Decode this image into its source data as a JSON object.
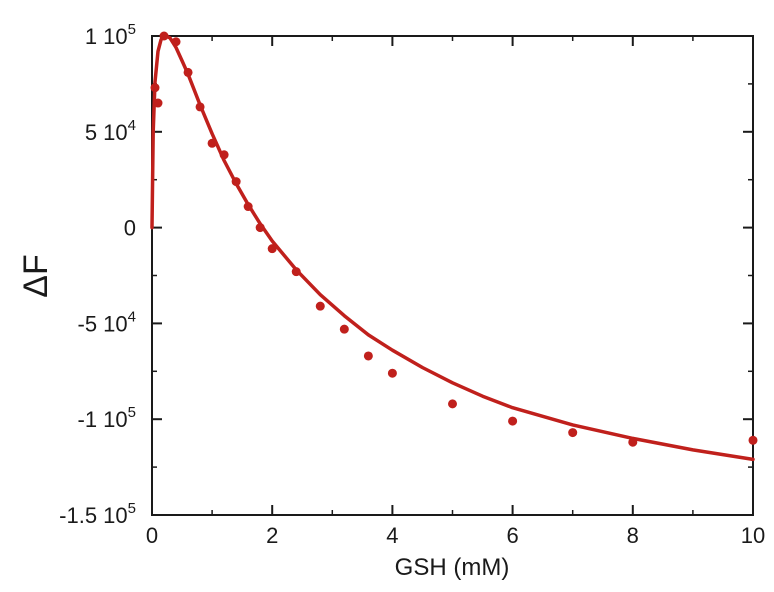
{
  "chart_data": {
    "type": "scatter",
    "title": "",
    "xlabel": "GSH (mM)",
    "ylabel": "ΔF",
    "xlim": [
      0,
      10
    ],
    "ylim": [
      -150000,
      100000
    ],
    "x_ticks": [
      {
        "value": 0,
        "label": "0"
      },
      {
        "value": 2,
        "label": "2"
      },
      {
        "value": 4,
        "label": "4"
      },
      {
        "value": 6,
        "label": "6"
      },
      {
        "value": 8,
        "label": "8"
      },
      {
        "value": 10,
        "label": "10"
      }
    ],
    "y_ticks": [
      {
        "value": 100000,
        "mantissa": "1 10",
        "exp": "5"
      },
      {
        "value": 50000,
        "mantissa": "5 10",
        "exp": "4"
      },
      {
        "value": 0,
        "mantissa": "0",
        "exp": ""
      },
      {
        "value": -50000,
        "mantissa": "-5 10",
        "exp": "4"
      },
      {
        "value": -100000,
        "mantissa": "-1 10",
        "exp": "5"
      },
      {
        "value": -150000,
        "mantissa": "-1.5 10",
        "exp": "5"
      }
    ],
    "grid": false,
    "color": "#c0201c",
    "series": [
      {
        "type": "scatter",
        "points": [
          {
            "x": 0.05,
            "y": 73000
          },
          {
            "x": 0.1,
            "y": 65000
          },
          {
            "x": 0.2,
            "y": 100000
          },
          {
            "x": 0.4,
            "y": 97000
          },
          {
            "x": 0.6,
            "y": 81000
          },
          {
            "x": 0.8,
            "y": 63000
          },
          {
            "x": 1.0,
            "y": 44000
          },
          {
            "x": 1.2,
            "y": 38000
          },
          {
            "x": 1.4,
            "y": 24000
          },
          {
            "x": 1.6,
            "y": 11000
          },
          {
            "x": 1.8,
            "y": 0
          },
          {
            "x": 2.0,
            "y": -11000
          },
          {
            "x": 2.4,
            "y": -23000
          },
          {
            "x": 2.8,
            "y": -41000
          },
          {
            "x": 3.2,
            "y": -53000
          },
          {
            "x": 3.6,
            "y": -67000
          },
          {
            "x": 4.0,
            "y": -76000
          },
          {
            "x": 5.0,
            "y": -92000
          },
          {
            "x": 6.0,
            "y": -101000
          },
          {
            "x": 7.0,
            "y": -107000
          },
          {
            "x": 8.0,
            "y": -112000
          },
          {
            "x": 10.0,
            "y": -111000
          }
        ]
      },
      {
        "type": "line",
        "points": [
          {
            "x": 0.0,
            "y": 0
          },
          {
            "x": 0.02,
            "y": 50000
          },
          {
            "x": 0.05,
            "y": 76000
          },
          {
            "x": 0.1,
            "y": 92000
          },
          {
            "x": 0.15,
            "y": 98000
          },
          {
            "x": 0.2,
            "y": 100500
          },
          {
            "x": 0.3,
            "y": 99000
          },
          {
            "x": 0.4,
            "y": 94000
          },
          {
            "x": 0.5,
            "y": 87000
          },
          {
            "x": 0.6,
            "y": 80000
          },
          {
            "x": 0.7,
            "y": 72000
          },
          {
            "x": 0.8,
            "y": 64000
          },
          {
            "x": 1.0,
            "y": 49000
          },
          {
            "x": 1.2,
            "y": 35000
          },
          {
            "x": 1.4,
            "y": 23000
          },
          {
            "x": 1.6,
            "y": 12000
          },
          {
            "x": 1.8,
            "y": 2000
          },
          {
            "x": 2.0,
            "y": -7000
          },
          {
            "x": 2.4,
            "y": -22000
          },
          {
            "x": 2.8,
            "y": -35000
          },
          {
            "x": 3.2,
            "y": -46000
          },
          {
            "x": 3.6,
            "y": -56000
          },
          {
            "x": 4.0,
            "y": -64000
          },
          {
            "x": 4.5,
            "y": -73000
          },
          {
            "x": 5.0,
            "y": -81000
          },
          {
            "x": 5.5,
            "y": -88000
          },
          {
            "x": 6.0,
            "y": -94000
          },
          {
            "x": 7.0,
            "y": -103000
          },
          {
            "x": 8.0,
            "y": -110000
          },
          {
            "x": 9.0,
            "y": -116000
          },
          {
            "x": 10.0,
            "y": -121000
          }
        ]
      }
    ]
  }
}
